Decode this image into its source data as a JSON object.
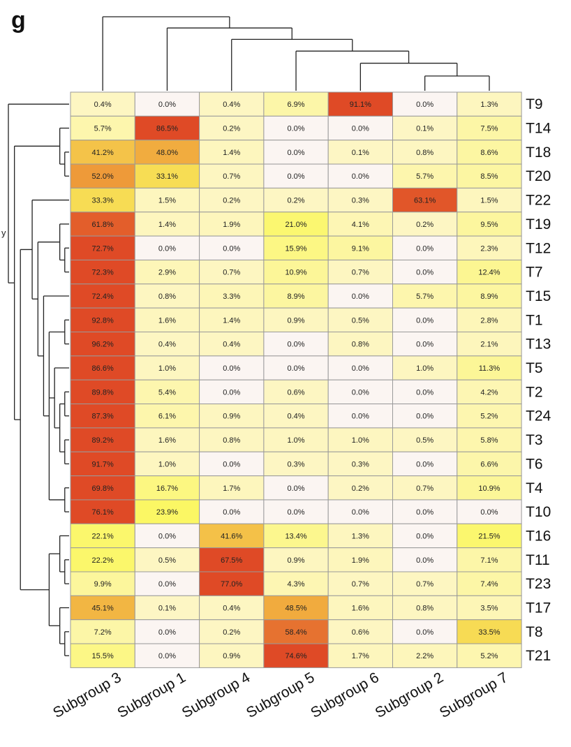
{
  "panel_letter": "g",
  "stray_label": "y",
  "chart_data": {
    "type": "heatmap",
    "title": "",
    "xlabel": "",
    "ylabel": "",
    "columns": [
      "Subgroup 3",
      "Subgroup 1",
      "Subgroup 4",
      "Subgroup 5",
      "Subgroup 6",
      "Subgroup 2",
      "Subgroup 7"
    ],
    "rows": [
      "T9",
      "T14",
      "T18",
      "T20",
      "T22",
      "T19",
      "T12",
      "T7",
      "T15",
      "T1",
      "T13",
      "T5",
      "T2",
      "T24",
      "T3",
      "T6",
      "T4",
      "T10",
      "T16",
      "T11",
      "T23",
      "T17",
      "T8",
      "T21"
    ],
    "values": [
      [
        0.4,
        0.0,
        0.4,
        6.9,
        91.1,
        0.0,
        1.3
      ],
      [
        5.7,
        86.5,
        0.2,
        0.0,
        0.0,
        0.1,
        7.5
      ],
      [
        41.2,
        48.0,
        1.4,
        0.0,
        0.1,
        0.8,
        8.6
      ],
      [
        52.0,
        33.1,
        0.7,
        0.0,
        0.0,
        5.7,
        8.5
      ],
      [
        33.3,
        1.5,
        0.2,
        0.2,
        0.3,
        63.1,
        1.5
      ],
      [
        61.8,
        1.4,
        1.9,
        21.0,
        4.1,
        0.2,
        9.5
      ],
      [
        72.7,
        0.0,
        0.0,
        15.9,
        9.1,
        0.0,
        2.3
      ],
      [
        72.3,
        2.9,
        0.7,
        10.9,
        0.7,
        0.0,
        12.4
      ],
      [
        72.4,
        0.8,
        3.3,
        8.9,
        0.0,
        5.7,
        8.9
      ],
      [
        92.8,
        1.6,
        1.4,
        0.9,
        0.5,
        0.0,
        2.8
      ],
      [
        96.2,
        0.4,
        0.4,
        0.0,
        0.8,
        0.0,
        2.1
      ],
      [
        86.6,
        1.0,
        0.0,
        0.0,
        0.0,
        1.0,
        11.3
      ],
      [
        89.8,
        5.4,
        0.0,
        0.6,
        0.0,
        0.0,
        4.2
      ],
      [
        87.3,
        6.1,
        0.9,
        0.4,
        0.0,
        0.0,
        5.2
      ],
      [
        89.2,
        1.6,
        0.8,
        1.0,
        1.0,
        0.5,
        5.8
      ],
      [
        91.7,
        1.0,
        0.0,
        0.3,
        0.3,
        0.0,
        6.6
      ],
      [
        69.8,
        16.7,
        1.7,
        0.0,
        0.2,
        0.7,
        10.9
      ],
      [
        76.1,
        23.9,
        0.0,
        0.0,
        0.0,
        0.0,
        0.0
      ],
      [
        22.1,
        0.0,
        41.6,
        13.4,
        1.3,
        0.0,
        21.5
      ],
      [
        22.2,
        0.5,
        67.5,
        0.9,
        1.9,
        0.0,
        7.1
      ],
      [
        9.9,
        0.0,
        77.0,
        4.3,
        0.7,
        0.7,
        7.4
      ],
      [
        45.1,
        0.1,
        0.4,
        48.5,
        1.6,
        0.8,
        3.5
      ],
      [
        7.2,
        0.0,
        0.2,
        58.4,
        0.6,
        0.0,
        33.5
      ],
      [
        15.5,
        0.0,
        0.9,
        74.6,
        1.7,
        2.2,
        5.2
      ]
    ],
    "value_suffix": "%",
    "colors": {
      "zero": "#fbf5f2",
      "low": "#fdf6c4",
      "mid": "#fbf760",
      "orange": "#f0a63c",
      "high": "#df4a26",
      "border": "#9a9a9a",
      "dendrogram": "#222222"
    },
    "column_dendrogram": [
      "Subgroup 3",
      [
        "Subgroup 1",
        [
          "Subgroup 4",
          [
            "Subgroup 5",
            [
              "Subgroup 6",
              [
                "Subgroup 2",
                "Subgroup 7"
              ]
            ]
          ]
        ]
      ]
    ],
    "row_dendrogram": [
      "T9",
      [
        [
          [
            "T14",
            [
              "T18",
              "T20"
            ]
          ]
        ],
        [
          [
            [
              "T22",
              [
                [
                  "T19",
                  [
                    "T12",
                    "T7"
                  ]
                ],
                [
                  "T15",
                  [
                    [
                      "T1",
                      "T13"
                    ],
                    [
                      "T5",
                      [
                        [
                          "T2",
                          "T24"
                        ],
                        [
                          "T3",
                          "T6"
                        ]
                      ]
                    ],
                    [
                      "T4",
                      "T10"
                    ]
                  ]
                ]
              ]
            ]
          ],
          [
            [
              [
                "T16",
                [
                  "T11",
                  "T23"
                ]
              ]
            ],
            [
              "T17",
              [
                "T8",
                "T21"
              ]
            ]
          ]
        ]
      ]
    ]
  }
}
